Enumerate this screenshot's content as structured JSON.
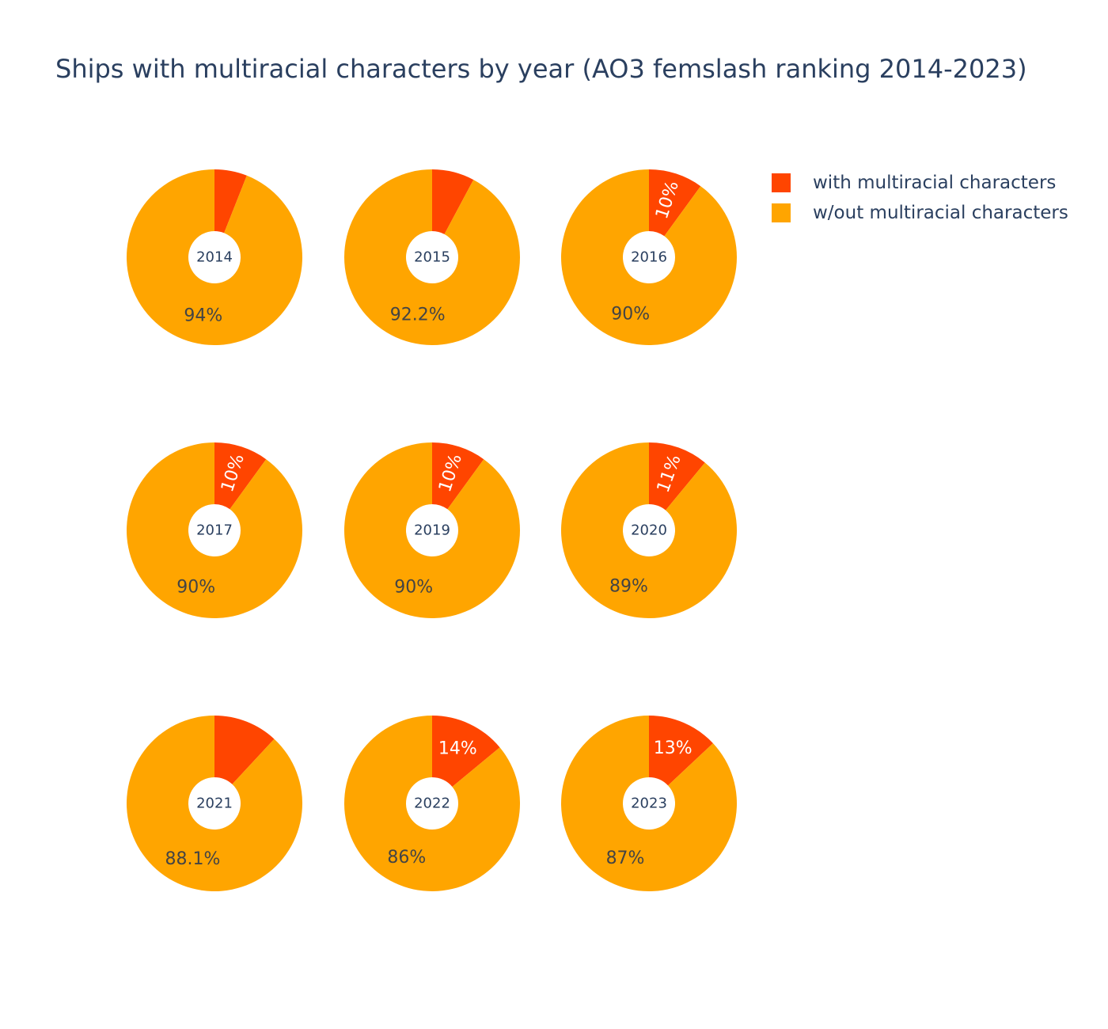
{
  "title": "Ships with multiracial characters by year (AO3 femslash ranking 2014-2023)",
  "colors": {
    "with": "#ff4500",
    "without": "#ffa500",
    "title": "#2a3f5f",
    "label_dark": "#444444",
    "label_light": "#ffffff"
  },
  "legend": [
    {
      "label": "with multiracial characters",
      "color": "#ff4500"
    },
    {
      "label": "w/out multiracial characters",
      "color": "#ffa500"
    }
  ],
  "chart_data": {
    "type": "pie",
    "hole": true,
    "legend_position": "top-right",
    "categories": [
      "with multiracial characters",
      "w/out multiracial characters"
    ],
    "charts": [
      {
        "center_label": "2014",
        "values": [
          6,
          94
        ],
        "labels": [
          "",
          "94%"
        ]
      },
      {
        "center_label": "2015",
        "values": [
          7.8,
          92.2
        ],
        "labels": [
          "",
          "92.2%"
        ]
      },
      {
        "center_label": "2016",
        "values": [
          10,
          90
        ],
        "labels": [
          "10%",
          "90%"
        ]
      },
      {
        "center_label": "2017",
        "values": [
          10,
          90
        ],
        "labels": [
          "10%",
          "90%"
        ]
      },
      {
        "center_label": "2019",
        "values": [
          10,
          90
        ],
        "labels": [
          "10%",
          "90%"
        ]
      },
      {
        "center_label": "2020",
        "values": [
          11,
          89
        ],
        "labels": [
          "11%",
          "89%"
        ]
      },
      {
        "center_label": "2021",
        "values": [
          11.9,
          88.1
        ],
        "labels": [
          "",
          "88.1%"
        ]
      },
      {
        "center_label": "2022",
        "values": [
          14,
          86
        ],
        "labels": [
          "14%",
          "86%"
        ]
      },
      {
        "center_label": "2023",
        "values": [
          13,
          87
        ],
        "labels": [
          "13%",
          "87%"
        ]
      }
    ]
  }
}
